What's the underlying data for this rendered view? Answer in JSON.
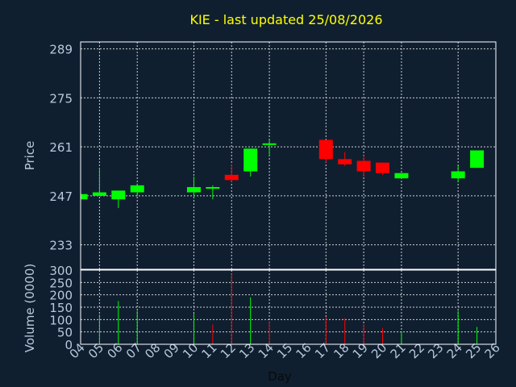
{
  "chart_data": [
    {
      "type": "candlestick",
      "title": "KIE - last updated 25/08/2026",
      "ylabel": "Price",
      "ylim": [
        226,
        291
      ],
      "yticks": [
        233,
        247,
        261,
        275,
        289
      ],
      "x_range": [
        4,
        26
      ],
      "grid": true,
      "colors": {
        "up": "#00ff00",
        "down": "#ff0000",
        "grid": "#cfcfcf",
        "text": "#b7c9dc",
        "title": "#ffff00"
      },
      "candles": [
        {
          "day": 4,
          "open": 246.0,
          "close": 247.5,
          "high": 247.5,
          "low": 246.0
        },
        {
          "day": 5,
          "open": 247.0,
          "close": 248.0,
          "high": 255.0,
          "low": 247.0
        },
        {
          "day": 6,
          "open": 246.0,
          "close": 248.5,
          "high": 248.5,
          "low": 243.5
        },
        {
          "day": 7,
          "open": 248.0,
          "close": 250.0,
          "high": 250.5,
          "low": 247.0
        },
        {
          "day": 10,
          "open": 248.0,
          "close": 249.5,
          "high": 252.5,
          "low": 246.5
        },
        {
          "day": 11,
          "open": 249.5,
          "close": 249.5,
          "high": 250.0,
          "low": 246.0
        },
        {
          "day": 12,
          "open": 253.0,
          "close": 251.5,
          "high": 256.0,
          "low": 251.0
        },
        {
          "day": 13,
          "open": 254.0,
          "close": 260.5,
          "high": 260.5,
          "low": 252.5
        },
        {
          "day": 14,
          "open": 262.0,
          "close": 262.0,
          "high": 263.0,
          "low": 258.5
        },
        {
          "day": 17,
          "open": 263.0,
          "close": 257.5,
          "high": 263.0,
          "low": 256.5
        },
        {
          "day": 18,
          "open": 257.5,
          "close": 256.0,
          "high": 259.5,
          "low": 255.5
        },
        {
          "day": 19,
          "open": 257.0,
          "close": 254.0,
          "high": 258.5,
          "low": 252.5
        },
        {
          "day": 20,
          "open": 256.5,
          "close": 253.5,
          "high": 256.5,
          "low": 253.0
        },
        {
          "day": 21,
          "open": 252.0,
          "close": 253.5,
          "high": 253.5,
          "low": 252.0
        },
        {
          "day": 24,
          "open": 252.0,
          "close": 254.0,
          "high": 255.5,
          "low": 251.0
        },
        {
          "day": 25,
          "open": 255.0,
          "close": 260.0,
          "high": 260.0,
          "low": 255.0
        }
      ]
    },
    {
      "type": "bar",
      "ylabel": "Volume (0000)",
      "xlabel": "Day",
      "ylim": [
        0,
        300
      ],
      "yticks": [
        0,
        50,
        100,
        150,
        200,
        250,
        300
      ],
      "x_tick_labels": [
        "04",
        "05",
        "06",
        "07",
        "08",
        "09",
        "10",
        "11",
        "12",
        "13",
        "14",
        "15",
        "16",
        "17",
        "18",
        "19",
        "20",
        "21",
        "22",
        "23",
        "24",
        "25",
        "26"
      ],
      "x_range": [
        4,
        26
      ],
      "bars": [
        {
          "day": 5,
          "value": 120,
          "color": "#00ff00"
        },
        {
          "day": 6,
          "value": 175,
          "color": "#00ff00"
        },
        {
          "day": 7,
          "value": 135,
          "color": "#00ff00"
        },
        {
          "day": 10,
          "value": 125,
          "color": "#00ff00"
        },
        {
          "day": 11,
          "value": 80,
          "color": "#ff0000"
        },
        {
          "day": 12,
          "value": 285,
          "color": "#ff0000"
        },
        {
          "day": 13,
          "value": 190,
          "color": "#00ff00"
        },
        {
          "day": 14,
          "value": 90,
          "color": "#ff0000"
        },
        {
          "day": 17,
          "value": 110,
          "color": "#ff0000"
        },
        {
          "day": 18,
          "value": 105,
          "color": "#ff0000"
        },
        {
          "day": 19,
          "value": 80,
          "color": "#ff0000"
        },
        {
          "day": 20,
          "value": 65,
          "color": "#ff0000"
        },
        {
          "day": 21,
          "value": 50,
          "color": "#00ff00"
        },
        {
          "day": 24,
          "value": 135,
          "color": "#00ff00"
        },
        {
          "day": 25,
          "value": 70,
          "color": "#00ff00"
        }
      ]
    }
  ]
}
